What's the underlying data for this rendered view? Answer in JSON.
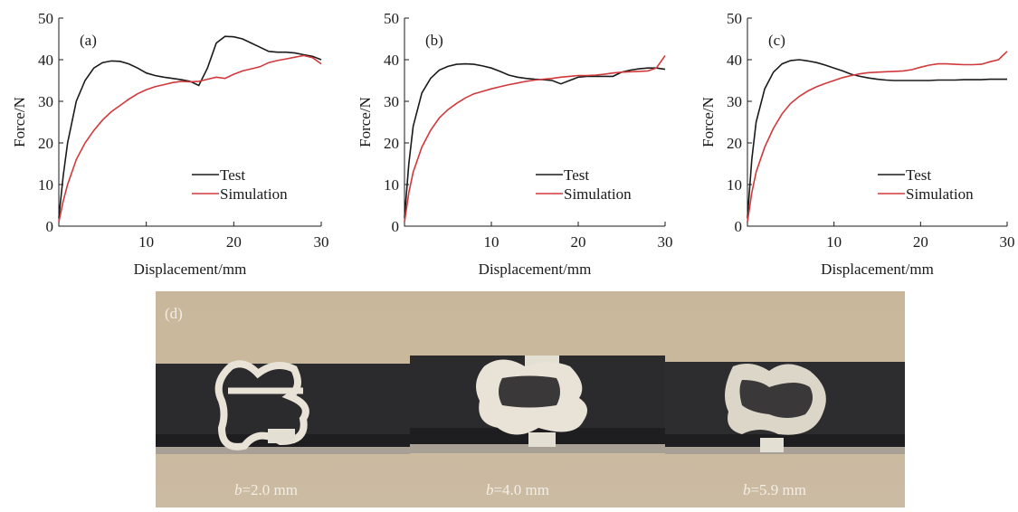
{
  "chart_data": [
    {
      "type": "line",
      "panel_label": "(a)",
      "x_label": "Displacement/mm",
      "y_label": "Force/N",
      "x": [
        0,
        0.5,
        1,
        2,
        3,
        4,
        5,
        6,
        7,
        8,
        9,
        10,
        11,
        12,
        13,
        14,
        15,
        16,
        17,
        18,
        19,
        20,
        21,
        22,
        23,
        24,
        25,
        26,
        27,
        28,
        29,
        30
      ],
      "xlim": [
        0,
        30
      ],
      "xticks": [
        10,
        20,
        30
      ],
      "ylim": [
        0,
        50
      ],
      "yticks": [
        0,
        10,
        20,
        30,
        40,
        50
      ],
      "legend": "lower right",
      "series": [
        {
          "name": "Test",
          "color": "#1a1a1a",
          "values": [
            2,
            12,
            20,
            30,
            35,
            38,
            39.3,
            39.7,
            39.6,
            39,
            38,
            36.8,
            36.2,
            35.8,
            35.5,
            35.2,
            34.8,
            33.8,
            38,
            44,
            45.6,
            45.5,
            45,
            44,
            43,
            42,
            41.8,
            41.8,
            41.6,
            41.2,
            40.8,
            40
          ]
        },
        {
          "name": "Simulation",
          "color": "#d0393b",
          "values": [
            1,
            6,
            10,
            16,
            20,
            23,
            25.5,
            27.5,
            29,
            30.5,
            31.8,
            32.8,
            33.5,
            34,
            34.5,
            34.8,
            34.7,
            34.8,
            35.3,
            35.8,
            35.5,
            36.5,
            37.3,
            37.8,
            38.3,
            39.3,
            39.8,
            40.2,
            40.6,
            41,
            40.5,
            39
          ]
        }
      ]
    },
    {
      "type": "line",
      "panel_label": "(b)",
      "x_label": "Displacement/mm",
      "y_label": "Force/N",
      "x": [
        0,
        0.5,
        1,
        2,
        3,
        4,
        5,
        6,
        7,
        8,
        9,
        10,
        11,
        12,
        13,
        14,
        15,
        16,
        17,
        18,
        19,
        20,
        21,
        22,
        23,
        24,
        25,
        26,
        27,
        28,
        29,
        30
      ],
      "xlim": [
        0,
        30
      ],
      "xticks": [
        10,
        20,
        30
      ],
      "ylim": [
        0,
        50
      ],
      "yticks": [
        0,
        10,
        20,
        30,
        40,
        50
      ],
      "legend": "lower right",
      "series": [
        {
          "name": "Test",
          "color": "#1a1a1a",
          "values": [
            2,
            15,
            24,
            32,
            35.5,
            37.5,
            38.4,
            38.9,
            39,
            38.9,
            38.5,
            38,
            37.2,
            36.3,
            35.8,
            35.5,
            35.3,
            35.2,
            35,
            34.2,
            35,
            35.8,
            36,
            36,
            36,
            36,
            37,
            37.5,
            37.8,
            38,
            38,
            37.7
          ]
        },
        {
          "name": "Simulation",
          "color": "#d0393b",
          "values": [
            1,
            8,
            13,
            19,
            23,
            26,
            28,
            29.5,
            30.8,
            31.8,
            32.4,
            33,
            33.5,
            34,
            34.4,
            34.8,
            35.1,
            35.3,
            35.5,
            35.8,
            36,
            36.2,
            36.2,
            36.3,
            36.5,
            36.8,
            37,
            37.1,
            37.2,
            37.3,
            38,
            41
          ]
        }
      ]
    },
    {
      "type": "line",
      "panel_label": "(c)",
      "x_label": "Displacement/mm",
      "y_label": "Force/N",
      "x": [
        0,
        0.5,
        1,
        2,
        3,
        4,
        5,
        6,
        7,
        8,
        9,
        10,
        11,
        12,
        13,
        14,
        15,
        16,
        17,
        18,
        19,
        20,
        21,
        22,
        23,
        24,
        25,
        26,
        27,
        28,
        29,
        30
      ],
      "xlim": [
        0,
        30
      ],
      "xticks": [
        10,
        20,
        30
      ],
      "ylim": [
        0,
        50
      ],
      "yticks": [
        0,
        10,
        20,
        30,
        40,
        50
      ],
      "legend": "lower right",
      "series": [
        {
          "name": "Test",
          "color": "#1a1a1a",
          "values": [
            2,
            16,
            25,
            33,
            37,
            39,
            39.8,
            40,
            39.7,
            39.3,
            38.7,
            38,
            37.3,
            36.5,
            36,
            35.6,
            35.3,
            35.1,
            35,
            35,
            35,
            35,
            35,
            35.1,
            35.1,
            35.1,
            35.2,
            35.2,
            35.2,
            35.3,
            35.3,
            35.3
          ]
        },
        {
          "name": "Simulation",
          "color": "#d0393b",
          "values": [
            1,
            8,
            13,
            19,
            23.5,
            27,
            29.5,
            31.2,
            32.5,
            33.5,
            34.3,
            35,
            35.7,
            36.2,
            36.6,
            36.9,
            37,
            37.1,
            37.2,
            37.3,
            37.6,
            38.2,
            38.7,
            39,
            39,
            38.9,
            38.8,
            38.8,
            38.9,
            39.5,
            40,
            42
          ]
        }
      ]
    }
  ],
  "photo_panel": {
    "label": "(d)",
    "symbol": "b",
    "captions": [
      "=2.0 mm",
      "=4.0 mm",
      "=5.9 mm"
    ]
  }
}
